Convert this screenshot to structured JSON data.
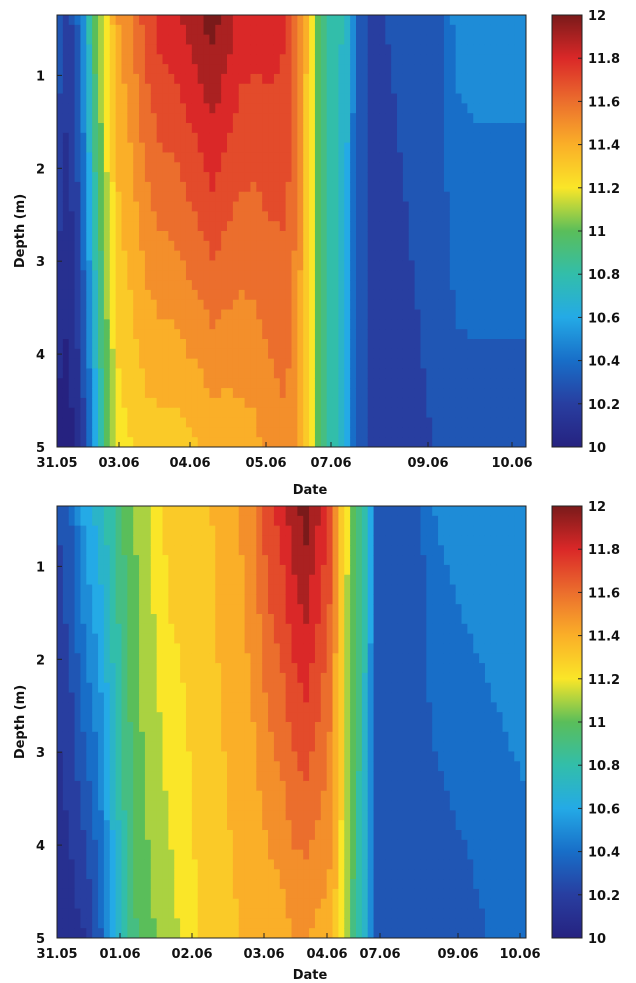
{
  "chart_data": [
    {
      "type": "heatmap",
      "xlabel": "Date",
      "ylabel": "Depth (m)",
      "x_tick_labels": [
        "31.05",
        "03.06",
        "04.06",
        "05.06",
        "07.06",
        "09.06",
        "10.06"
      ],
      "y_ticks": [
        1,
        2,
        3,
        4,
        5
      ],
      "ylim": [
        0.35,
        5
      ],
      "y_inverted": true,
      "colorbar": {
        "ticks": [
          "10",
          "10.2",
          "10.4",
          "10.6",
          "10.8",
          "11",
          "11.2",
          "11.4",
          "11.6",
          "11.8",
          "12"
        ],
        "range": [
          10,
          12
        ]
      },
      "columns": [
        {
          "x": 0.0,
          "top": 10.35,
          "bottom": 10.0
        },
        {
          "x": 0.02,
          "top": 10.2,
          "bottom": 10.0
        },
        {
          "x": 0.04,
          "top": 10.3,
          "bottom": 10.05
        },
        {
          "x": 0.06,
          "top": 10.6,
          "bottom": 10.25
        },
        {
          "x": 0.08,
          "top": 11.0,
          "bottom": 10.55
        },
        {
          "x": 0.1,
          "top": 11.2,
          "bottom": 10.9
        },
        {
          "x": 0.13,
          "top": 11.45,
          "bottom": 11.2
        },
        {
          "x": 0.16,
          "top": 11.55,
          "bottom": 11.25
        },
        {
          "x": 0.19,
          "top": 11.7,
          "bottom": 11.3
        },
        {
          "x": 0.22,
          "top": 11.8,
          "bottom": 11.3
        },
        {
          "x": 0.25,
          "top": 11.82,
          "bottom": 11.3
        },
        {
          "x": 0.28,
          "top": 11.88,
          "bottom": 11.33
        },
        {
          "x": 0.31,
          "top": 11.95,
          "bottom": 11.35
        },
        {
          "x": 0.33,
          "top": 12.0,
          "bottom": 11.38
        },
        {
          "x": 0.36,
          "top": 11.92,
          "bottom": 11.38
        },
        {
          "x": 0.39,
          "top": 11.82,
          "bottom": 11.4
        },
        {
          "x": 0.42,
          "top": 11.8,
          "bottom": 11.42
        },
        {
          "x": 0.45,
          "top": 11.8,
          "bottom": 11.48
        },
        {
          "x": 0.48,
          "top": 11.78,
          "bottom": 11.52
        },
        {
          "x": 0.5,
          "top": 11.72,
          "bottom": 11.5
        },
        {
          "x": 0.52,
          "top": 11.5,
          "bottom": 11.4
        },
        {
          "x": 0.54,
          "top": 11.25,
          "bottom": 11.2
        },
        {
          "x": 0.56,
          "top": 11.0,
          "bottom": 10.95
        },
        {
          "x": 0.58,
          "top": 10.85,
          "bottom": 10.8
        },
        {
          "x": 0.6,
          "top": 10.8,
          "bottom": 10.75
        },
        {
          "x": 0.62,
          "top": 10.65,
          "bottom": 10.62
        },
        {
          "x": 0.64,
          "top": 10.3,
          "bottom": 10.3
        },
        {
          "x": 0.66,
          "top": 10.25,
          "bottom": 10.25
        },
        {
          "x": 0.7,
          "top": 10.25,
          "bottom": 10.24
        },
        {
          "x": 0.8,
          "top": 10.26,
          "bottom": 10.25
        },
        {
          "x": 0.85,
          "top": 10.48,
          "bottom": 10.3
        },
        {
          "x": 0.9,
          "top": 10.5,
          "bottom": 10.3
        },
        {
          "x": 0.95,
          "top": 10.5,
          "bottom": 10.3
        },
        {
          "x": 1.0,
          "top": 10.5,
          "bottom": 10.3
        }
      ]
    },
    {
      "type": "heatmap",
      "xlabel": "Date",
      "ylabel": "Depth (m)",
      "x_tick_labels": [
        "31.05",
        "01.06",
        "02.06",
        "03.06",
        "04.06",
        "07.06",
        "09.06",
        "10.06"
      ],
      "y_ticks": [
        1,
        2,
        3,
        4,
        5
      ],
      "ylim": [
        0.35,
        5
      ],
      "y_inverted": true,
      "colorbar": {
        "ticks": [
          "10",
          "10.2",
          "10.4",
          "10.6",
          "10.8",
          "11",
          "11.2",
          "11.4",
          "11.6",
          "11.8",
          "12"
        ],
        "range": [
          10,
          12
        ]
      },
      "columns": [
        {
          "x": 0.0,
          "top": 10.25,
          "bottom": 10.05
        },
        {
          "x": 0.03,
          "top": 10.35,
          "bottom": 10.1
        },
        {
          "x": 0.06,
          "top": 10.6,
          "bottom": 10.15
        },
        {
          "x": 0.09,
          "top": 10.7,
          "bottom": 10.3
        },
        {
          "x": 0.12,
          "top": 10.85,
          "bottom": 10.6
        },
        {
          "x": 0.15,
          "top": 11.0,
          "bottom": 10.85
        },
        {
          "x": 0.18,
          "top": 11.1,
          "bottom": 11.0
        },
        {
          "x": 0.21,
          "top": 11.2,
          "bottom": 11.05
        },
        {
          "x": 0.24,
          "top": 11.3,
          "bottom": 11.1
        },
        {
          "x": 0.27,
          "top": 11.3,
          "bottom": 11.18
        },
        {
          "x": 0.3,
          "top": 11.32,
          "bottom": 11.25
        },
        {
          "x": 0.33,
          "top": 11.35,
          "bottom": 11.3
        },
        {
          "x": 0.36,
          "top": 11.4,
          "bottom": 11.32
        },
        {
          "x": 0.39,
          "top": 11.45,
          "bottom": 11.35
        },
        {
          "x": 0.42,
          "top": 11.55,
          "bottom": 11.35
        },
        {
          "x": 0.45,
          "top": 11.72,
          "bottom": 11.38
        },
        {
          "x": 0.48,
          "top": 11.8,
          "bottom": 11.4
        },
        {
          "x": 0.5,
          "top": 11.9,
          "bottom": 11.45
        },
        {
          "x": 0.53,
          "top": 12.0,
          "bottom": 11.45
        },
        {
          "x": 0.56,
          "top": 11.85,
          "bottom": 11.42
        },
        {
          "x": 0.58,
          "top": 11.75,
          "bottom": 11.4
        },
        {
          "x": 0.6,
          "top": 11.4,
          "bottom": 11.3
        },
        {
          "x": 0.62,
          "top": 11.15,
          "bottom": 11.05
        },
        {
          "x": 0.64,
          "top": 10.95,
          "bottom": 10.85
        },
        {
          "x": 0.66,
          "top": 10.75,
          "bottom": 10.65
        },
        {
          "x": 0.68,
          "top": 10.35,
          "bottom": 10.3
        },
        {
          "x": 0.7,
          "top": 10.25,
          "bottom": 10.25
        },
        {
          "x": 0.76,
          "top": 10.26,
          "bottom": 10.25
        },
        {
          "x": 0.8,
          "top": 10.45,
          "bottom": 10.27
        },
        {
          "x": 0.86,
          "top": 10.5,
          "bottom": 10.3
        },
        {
          "x": 0.92,
          "top": 10.52,
          "bottom": 10.35
        },
        {
          "x": 1.0,
          "top": 10.55,
          "bottom": 10.4
        }
      ]
    }
  ]
}
